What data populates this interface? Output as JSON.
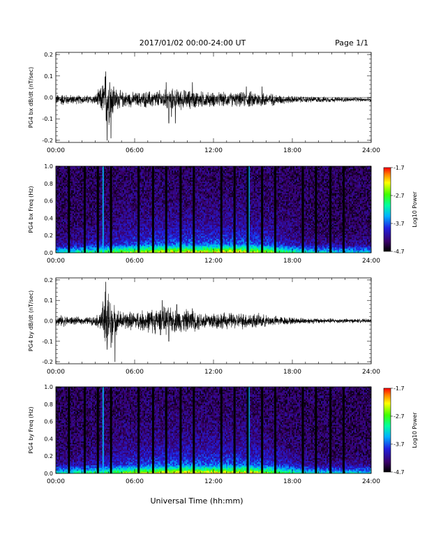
{
  "header": {
    "title": "2017/01/02  00:00-24:00 UT",
    "page_label": "Page 1/1"
  },
  "xlabel": "Universal Time (hh:mm)",
  "x_ticks": [
    "00:00",
    "06:00",
    "12:00",
    "18:00",
    "24:00"
  ],
  "colorbar": {
    "label": "Log10 Power",
    "ticks": [
      "-1.7",
      "-2.7",
      "-3.7",
      "-4.7"
    ]
  },
  "chart_data": [
    {
      "type": "line",
      "ylabel": "PG4 bx dB/dt (nT/sec)",
      "y_ticks": [
        "0.2",
        "0.1",
        "0.0",
        "-0.1",
        "-0.2"
      ],
      "xlim": [
        0,
        24
      ],
      "ylim": [
        -0.21,
        0.21
      ],
      "baseline": -0.01,
      "envelope": [
        [
          0,
          0.02
        ],
        [
          0.5,
          0.025
        ],
        [
          1,
          0.02
        ],
        [
          2,
          0.018
        ],
        [
          3,
          0.02
        ],
        [
          3.5,
          0.06
        ],
        [
          3.8,
          0.12
        ],
        [
          4.1,
          0.1
        ],
        [
          4.5,
          0.05
        ],
        [
          5,
          0.035
        ],
        [
          6,
          0.03
        ],
        [
          7,
          0.035
        ],
        [
          8,
          0.04
        ],
        [
          9,
          0.045
        ],
        [
          10,
          0.04
        ],
        [
          11,
          0.035
        ],
        [
          12,
          0.03
        ],
        [
          13,
          0.03
        ],
        [
          14,
          0.03
        ],
        [
          15,
          0.035
        ],
        [
          16,
          0.03
        ],
        [
          17,
          0.02
        ],
        [
          18,
          0.015
        ],
        [
          20,
          0.012
        ],
        [
          22,
          0.01
        ],
        [
          24,
          0.008
        ]
      ],
      "spikes": [
        [
          3.8,
          0.12
        ],
        [
          3.9,
          -0.2
        ],
        [
          4.1,
          0.07
        ],
        [
          4.2,
          -0.19
        ],
        [
          4.4,
          0.05
        ],
        [
          8.4,
          0.07
        ],
        [
          8.6,
          -0.12
        ],
        [
          8.8,
          -0.09
        ],
        [
          9.1,
          -0.12
        ],
        [
          10.4,
          0.07
        ],
        [
          14.5,
          0.05
        ],
        [
          15.7,
          0.05
        ]
      ]
    },
    {
      "type": "heatmap",
      "ylabel": "PG4 bx Freq (Hz)",
      "y_ticks": [
        "1.0",
        "0.8",
        "0.6",
        "0.4",
        "0.2",
        "0.0"
      ],
      "xlim": [
        0,
        24
      ],
      "ylim": [
        0,
        1.0
      ],
      "zlim": [
        -4.7,
        -1.7
      ],
      "gap_columns_hours": [
        1,
        2.2,
        3.2,
        4.2,
        6.3,
        7.4,
        8.4,
        9.5,
        10.5,
        12.6,
        13.6,
        14.6,
        15.7,
        16.7,
        18.8,
        19.8,
        20.9,
        21.9
      ],
      "bright_line_hours": [
        3.6,
        14.7
      ],
      "low_freq_band_hz": 0.1
    },
    {
      "type": "line",
      "ylabel": "PG4 by dB/dt (nT/sec)",
      "y_ticks": [
        "0.2",
        "0.1",
        "0.0",
        "-0.1",
        "-0.2"
      ],
      "xlim": [
        0,
        24
      ],
      "ylim": [
        -0.21,
        0.21
      ],
      "baseline": 0.0,
      "envelope": [
        [
          0,
          0.02
        ],
        [
          0.5,
          0.025
        ],
        [
          1,
          0.02
        ],
        [
          2,
          0.015
        ],
        [
          3,
          0.02
        ],
        [
          3.5,
          0.05
        ],
        [
          3.8,
          0.18
        ],
        [
          4.1,
          0.12
        ],
        [
          4.5,
          0.06
        ],
        [
          5,
          0.04
        ],
        [
          6,
          0.04
        ],
        [
          7,
          0.05
        ],
        [
          8,
          0.06
        ],
        [
          8.5,
          0.06
        ],
        [
          9,
          0.05
        ],
        [
          10,
          0.05
        ],
        [
          11,
          0.04
        ],
        [
          12,
          0.04
        ],
        [
          13,
          0.035
        ],
        [
          14,
          0.035
        ],
        [
          15,
          0.035
        ],
        [
          16,
          0.025
        ],
        [
          17,
          0.02
        ],
        [
          18,
          0.015
        ],
        [
          20,
          0.012
        ],
        [
          22,
          0.01
        ],
        [
          24,
          0.008
        ]
      ],
      "spikes": [
        [
          3.8,
          0.19
        ],
        [
          3.9,
          -0.14
        ],
        [
          4.2,
          -0.13
        ],
        [
          4.5,
          -0.2
        ],
        [
          8.1,
          0.1
        ],
        [
          8.6,
          -0.1
        ],
        [
          9.2,
          0.08
        ],
        [
          10.4,
          0.06
        ]
      ]
    },
    {
      "type": "heatmap",
      "ylabel": "PG4 by Freq (Hz)",
      "y_ticks": [
        "1.0",
        "0.8",
        "0.6",
        "0.4",
        "0.2",
        "0.0"
      ],
      "xlim": [
        0,
        24
      ],
      "ylim": [
        0,
        1.0
      ],
      "zlim": [
        -4.7,
        -1.7
      ],
      "gap_columns_hours": [
        1,
        2.2,
        3.2,
        4.2,
        6.3,
        7.4,
        8.4,
        9.5,
        10.5,
        12.6,
        13.6,
        14.6,
        15.7,
        16.7,
        18.8,
        19.8,
        20.9,
        21.9
      ],
      "bright_line_hours": [
        3.6,
        14.7
      ],
      "low_freq_band_hz": 0.1
    }
  ]
}
